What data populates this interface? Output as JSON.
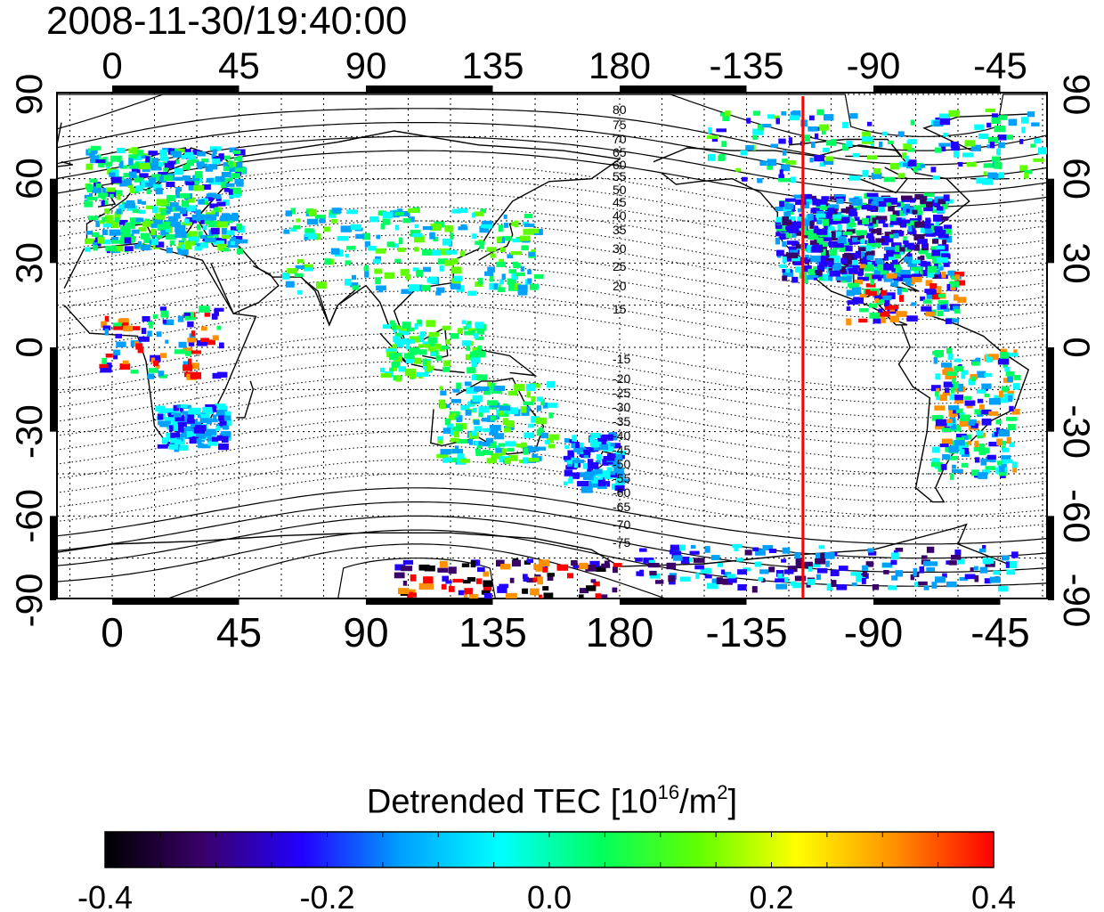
{
  "title": "2008-11-30/19:40:00",
  "map": {
    "lon_ticks": [
      "0",
      "45",
      "90",
      "135",
      "180",
      "-135",
      "-90",
      "-45"
    ],
    "lat_ticks": [
      "90",
      "60",
      "30",
      "0",
      "-30",
      "-60",
      "-90"
    ],
    "contour_labels_north": [
      "80",
      "75",
      "70",
      "65",
      "60",
      "55",
      "50",
      "45",
      "40",
      "35",
      "30",
      "25",
      "20",
      "15"
    ],
    "contour_labels_south": [
      "-15",
      "-20",
      "-25",
      "-30",
      "-35",
      "-40",
      "-45",
      "-50",
      "-55",
      "-60",
      "-65",
      "-70",
      "-75"
    ],
    "marker_line_color": "#ff0000",
    "marker_line_lon": -115
  },
  "colorbar": {
    "title_main": "Detrended TEC  [10",
    "title_sup": "16",
    "title_mid": "/m",
    "title_sup2": "2",
    "title_end": "]",
    "ticks": [
      "-0.4",
      "-0.2",
      "0.0",
      "0.2",
      "0.4"
    ],
    "range": [
      -0.4,
      0.4
    ],
    "colors": [
      "#000000",
      "#3a006a",
      "#2200ff",
      "#00a0ff",
      "#00ffff",
      "#00ff60",
      "#60ff00",
      "#ffff00",
      "#ff9000",
      "#ff0000"
    ]
  }
}
